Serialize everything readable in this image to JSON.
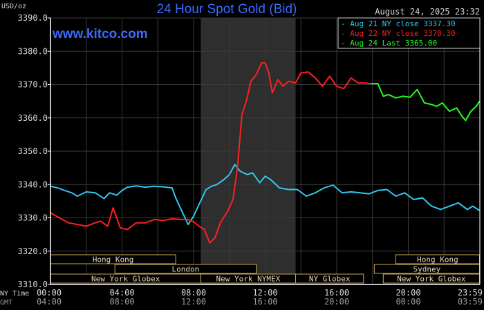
{
  "chart_data": {
    "type": "line",
    "title": "24 Hour Spot Gold (Bid)",
    "watermark": "www.kitco.com",
    "timestamp": "August 24, 2025 23:32",
    "ylabel": "USD/oz",
    "ylim": [
      3310,
      3390
    ],
    "y_ticks": [
      "3390.0",
      "3380.0",
      "3370.0",
      "3360.0",
      "3350.0",
      "3340.0",
      "3330.0",
      "3320.0",
      "3310.0"
    ],
    "xlim": [
      0,
      24
    ],
    "x_axis_rows": [
      {
        "label": "NY Time",
        "ticks": [
          "00:00",
          "04:00",
          "08:00",
          "12:00",
          "16:00",
          "20:00",
          "23:59"
        ]
      },
      {
        "label": "GMT",
        "ticks": [
          "04:00",
          "08:00",
          "12:00",
          "16:00",
          "20:00",
          "00:00",
          "03:59"
        ]
      }
    ],
    "grid": true,
    "legend_position": "top-right",
    "highlight_band_hours": [
      8.4,
      13.7
    ],
    "colors": {
      "background": "#000000",
      "grid": "#3a3a3a",
      "band": "#2e2e2e",
      "axis": "#ffffff",
      "text": "#d8d8d8",
      "title": "#3a6bff",
      "session_border": "#c8a850"
    },
    "legend": [
      {
        "text": "Aug 21 NY close 3337.30",
        "color": "#30c8f0"
      },
      {
        "text": "Aug 22 NY close 3370.30",
        "color": "#ff2020"
      },
      {
        "text": "Aug 24 Last 3365.00",
        "color": "#20ff20"
      }
    ],
    "series": [
      {
        "color": "#30c8f0",
        "x": [
          0,
          0.4,
          0.8,
          1.2,
          1.5,
          2,
          2.5,
          3,
          3.3,
          3.7,
          4,
          4.3,
          4.8,
          5.3,
          5.8,
          6.3,
          6.8,
          7.0,
          7.3,
          7.7,
          8.0,
          8.3,
          8.7,
          9.0,
          9.3,
          9.7,
          10.0,
          10.3,
          10.6,
          11.0,
          11.3,
          11.7,
          12.0,
          12.3,
          12.8,
          13.3,
          13.8,
          14.3,
          14.8,
          15.3,
          15.8,
          16.3,
          16.8,
          17.3,
          17.8,
          18.3,
          18.8,
          19.3,
          19.8,
          20.3,
          20.8,
          21.3,
          21.8,
          22.3,
          22.8,
          23.3,
          23.6,
          23.98
        ],
        "y": [
          3339.5,
          3339,
          3338.2,
          3337.5,
          3336.5,
          3337.8,
          3337.5,
          3335.8,
          3337.5,
          3336.8,
          3338.2,
          3339.2,
          3339.6,
          3339.2,
          3339.5,
          3339.3,
          3339.0,
          3336,
          3332.5,
          3328,
          3330.5,
          3334,
          3338.5,
          3339.5,
          3340,
          3341.5,
          3343,
          3346,
          3344,
          3343,
          3343.5,
          3340.5,
          3342.5,
          3341.5,
          3339,
          3338.5,
          3338.5,
          3336.5,
          3337.5,
          3339,
          3339.8,
          3337.5,
          3337.8,
          3337.5,
          3337.2,
          3338.2,
          3338.5,
          3336.5,
          3337.5,
          3335.5,
          3336,
          3333.5,
          3332.5,
          3333.5,
          3334.5,
          3332.5,
          3333.5,
          3332.2
        ]
      },
      {
        "color": "#ff2020",
        "x": [
          0,
          0.5,
          1,
          1.5,
          2,
          2.5,
          2.8,
          3.2,
          3.5,
          3.9,
          4.3,
          4.8,
          5.3,
          5.8,
          6.3,
          6.8,
          7.3,
          7.7,
          8.0,
          8.3,
          8.6,
          8.9,
          9.2,
          9.5,
          9.9,
          10.2,
          10.45,
          10.7,
          10.95,
          11.2,
          11.5,
          11.8,
          12.0,
          12.2,
          12.4,
          12.7,
          13.0,
          13.3,
          13.7,
          14.0,
          14.4,
          14.8,
          15.2,
          15.6,
          16.0,
          16.4,
          16.8,
          17.2,
          17.6,
          17.9
        ],
        "y": [
          3331.5,
          3330,
          3328.5,
          3328,
          3327.5,
          3328.5,
          3329,
          3327.5,
          3333,
          3327,
          3326.5,
          3328.5,
          3328.5,
          3329.5,
          3329.2,
          3329.7,
          3329.5,
          3329.5,
          3328.8,
          3327.5,
          3326.5,
          3322.5,
          3324,
          3328.5,
          3332,
          3335.5,
          3345,
          3361,
          3365,
          3371,
          3373,
          3376.5,
          3376.5,
          3373.5,
          3367.5,
          3371.5,
          3369.5,
          3371,
          3370.5,
          3373.5,
          3373.8,
          3372,
          3369.5,
          3372.5,
          3369.5,
          3368.8,
          3372,
          3370.5,
          3370.5,
          3370.3
        ]
      },
      {
        "color": "#20ff20",
        "x": [
          17.9,
          18.3,
          18.6,
          18.9,
          19.3,
          19.7,
          20.1,
          20.5,
          20.9,
          21.3,
          21.6,
          21.9,
          22.3,
          22.7,
          23.0,
          23.2,
          23.5,
          23.8,
          23.98
        ],
        "y": [
          3370.3,
          3370.3,
          3366.5,
          3367,
          3366,
          3366.5,
          3366.2,
          3368.5,
          3364.5,
          3364,
          3363.5,
          3364.5,
          3362,
          3363,
          3360.5,
          3359.2,
          3362,
          3363.5,
          3365
        ]
      }
    ],
    "sessions": [
      {
        "label": "Hong Kong",
        "start": 0,
        "end": 7.0,
        "row": 0
      },
      {
        "label": "Hong Kong",
        "start": 19.3,
        "end": 23.98,
        "row": 0
      },
      {
        "label": "London",
        "start": 3.6,
        "end": 11.5,
        "row": 1
      },
      {
        "label": "Sydney",
        "start": 18.1,
        "end": 23.98,
        "row": 1
      },
      {
        "label": "New York Globex",
        "start": 0,
        "end": 8.4,
        "row": 2
      },
      {
        "label": "New York NYMEX",
        "start": 8.4,
        "end": 13.7,
        "row": 2
      },
      {
        "label": "NY Globex",
        "start": 13.7,
        "end": 17.5,
        "row": 2
      },
      {
        "label": "New York Globex",
        "start": 18.6,
        "end": 23.98,
        "row": 2
      }
    ]
  }
}
